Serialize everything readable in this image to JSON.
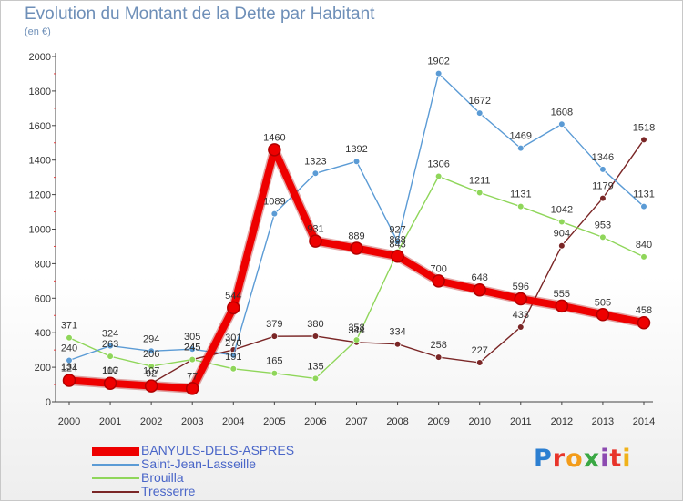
{
  "header": {
    "title": "Evolution du Montant de la Dette par Habitant",
    "subtitle": "(en €)"
  },
  "logo": {
    "text": "Proxiti",
    "colors": [
      "#2c7fd1",
      "#e8342a",
      "#f39c1a",
      "#3aa844",
      "#8c4ab0",
      "#e8342a",
      "#f0b21a"
    ]
  },
  "chart_data": {
    "type": "line",
    "title": "Evolution du Montant de la Dette par Habitant",
    "subtitle": "(en €)",
    "x": [
      "2000",
      "2001",
      "2002",
      "2003",
      "2004",
      "2005",
      "2006",
      "2007",
      "2008",
      "2009",
      "2010",
      "2011",
      "2012",
      "2013",
      "2014"
    ],
    "yticks": [
      "0",
      "200",
      "400",
      "600",
      "800",
      "1000",
      "1200",
      "1400",
      "1600",
      "1800",
      "2000"
    ],
    "ylim": [
      0,
      2000
    ],
    "grid": false,
    "legend_position": "bottom-left",
    "series": [
      {
        "name": "BANYULS-DELS-ASPRES",
        "color": "#ee0000",
        "values": [
          124,
          107,
          92,
          77,
          544,
          1460,
          931,
          889,
          843,
          700,
          648,
          596,
          555,
          505,
          458
        ],
        "labels": [
          "124",
          "107",
          "92",
          "77",
          "544",
          "1460",
          "931",
          "889",
          "843",
          "700",
          "648",
          "596",
          "555",
          "505",
          "458"
        ]
      },
      {
        "name": "Saint-Jean-Lasseille",
        "color": "#5b9bd5",
        "values": [
          240,
          324,
          294,
          305,
          270,
          1089,
          1323,
          1392,
          927,
          1902,
          1672,
          1469,
          1608,
          1346,
          1131
        ],
        "labels": [
          "240",
          "324",
          "294",
          "305",
          "270",
          "1089",
          "1323",
          "1392",
          "927",
          "1902",
          "1672",
          "1469",
          "1608",
          "1346",
          "1131"
        ]
      },
      {
        "name": "Brouilla",
        "color": "#8fd65a",
        "values": [
          371,
          263,
          206,
          245,
          191,
          165,
          135,
          358,
          868,
          1306,
          1211,
          1131,
          1042,
          953,
          840
        ],
        "labels": [
          "371",
          "263",
          "206",
          "245",
          "191",
          "165",
          "135",
          "358",
          "868",
          "1306",
          "1211",
          "1131",
          "1042",
          "953",
          "840"
        ]
      },
      {
        "name": "Tresserre",
        "color": "#7a2626",
        "values": [
          131,
          110,
          107,
          245,
          301,
          379,
          380,
          344,
          334,
          258,
          227,
          433,
          904,
          1179,
          1518
        ],
        "labels": [
          "131",
          "110",
          "107",
          "245",
          "301",
          "379",
          "380",
          "344",
          "334",
          "258",
          "227",
          "433",
          "904",
          "1179",
          "1518"
        ]
      }
    ]
  }
}
